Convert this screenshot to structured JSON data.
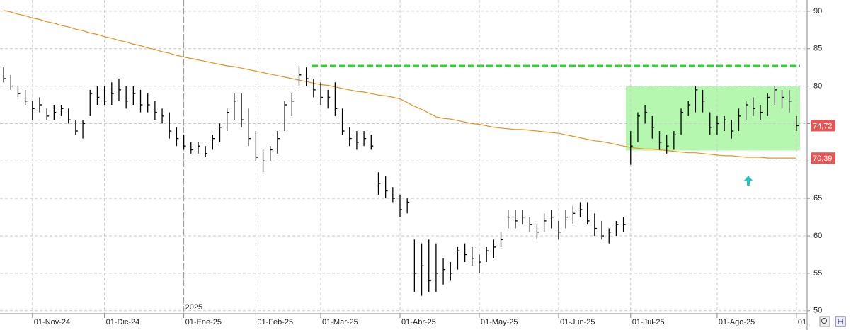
{
  "chart_data": {
    "type": "ohlc",
    "categories": [
      null,
      null,
      null,
      null,
      "01-Nov-24",
      null,
      null,
      null,
      null,
      null,
      null,
      null,
      null,
      null,
      "01-Dic-24",
      null,
      null,
      null,
      null,
      null,
      null,
      null,
      null,
      null,
      null,
      "01-Ene-25",
      null,
      null,
      null,
      null,
      null,
      null,
      null,
      null,
      null,
      "01-Feb-25",
      null,
      null,
      null,
      null,
      null,
      null,
      null,
      null,
      "01-Mar-25",
      null,
      null,
      null,
      null,
      null,
      null,
      null,
      null,
      null,
      null,
      "01-Abr-25",
      null,
      null,
      null,
      null,
      null,
      null,
      null,
      null,
      null,
      null,
      "01-May-25",
      null,
      null,
      null,
      null,
      null,
      null,
      null,
      null,
      null,
      null,
      "01-Jun-25",
      null,
      null,
      null,
      null,
      null,
      null,
      null,
      null,
      null,
      "01-Jul-25",
      null,
      null,
      null,
      null,
      null,
      null,
      null,
      null,
      null,
      null,
      null,
      "01-Ago-25",
      null,
      null,
      null,
      null,
      null,
      null,
      null,
      null,
      null,
      null,
      "01"
    ],
    "high": [
      82.5,
      81.5,
      80,
      79.5,
      78,
      78.5,
      77,
      77.5,
      77.5,
      77,
      75.5,
      75.5,
      79.5,
      80,
      80,
      80.5,
      81,
      80,
      80,
      79.5,
      79,
      78,
      77,
      76.5,
      74.5,
      73.5,
      72.5,
      72.5,
      72,
      73.5,
      75,
      77,
      79,
      79,
      77,
      74,
      71.5,
      72,
      74,
      78,
      79,
      82.5,
      82.5,
      81,
      80.5,
      79.5,
      80.5,
      77,
      74.5,
      74,
      74,
      73.5,
      68.5,
      68,
      66.5,
      65.5,
      65,
      59.5,
      59,
      59.5,
      59,
      57,
      56.5,
      58.5,
      59,
      58.5,
      57.5,
      58.5,
      59.5,
      60.5,
      63.5,
      63.5,
      63.5,
      62.5,
      61.5,
      63,
      63.5,
      62,
      63.5,
      64,
      64.5,
      64.5,
      63,
      62,
      61,
      62,
      62.5,
      74,
      76.5,
      77.5,
      76,
      74,
      73.5,
      74,
      77,
      78,
      80,
      79.5,
      76.5,
      76,
      76,
      75.5,
      77,
      78,
      78.5,
      77.5,
      79,
      80,
      79.5,
      79.5,
      76
    ],
    "low": [
      80.5,
      79.5,
      78.5,
      77.5,
      75.5,
      76.5,
      75.5,
      75.5,
      76,
      75,
      73.5,
      73,
      76,
      77.5,
      77.5,
      77.5,
      78,
      77,
      77.5,
      76.5,
      76.5,
      75.5,
      75,
      73,
      72,
      71.5,
      71,
      71,
      70.5,
      71.5,
      72.5,
      74,
      75.5,
      74.5,
      72,
      70,
      68.5,
      70,
      71,
      74,
      76,
      80,
      80,
      78.5,
      77.5,
      77,
      76,
      73.5,
      72,
      71.5,
      72,
      71.5,
      65.5,
      65,
      64.5,
      62.5,
      63,
      52.5,
      52,
      52.5,
      52.5,
      53.5,
      54,
      55.5,
      56.5,
      56,
      55,
      56.5,
      57,
      58.5,
      61,
      61,
      61.5,
      60.5,
      59.5,
      60.5,
      61,
      59.5,
      61,
      61.5,
      62.5,
      61.5,
      60,
      59.5,
      59,
      60,
      60.5,
      69.5,
      72.5,
      75,
      73,
      71.5,
      71,
      71.5,
      73.5,
      76,
      76.5,
      76.5,
      73.5,
      73.5,
      74,
      73,
      74,
      75.5,
      76,
      75.5,
      76,
      77.5,
      77,
      76.5,
      74
    ],
    "close": [
      81,
      80,
      79,
      78,
      77,
      77.5,
      76,
      76.5,
      77,
      75.5,
      74,
      75,
      79,
      78.5,
      78,
      79,
      79.5,
      78,
      79,
      77.5,
      77.5,
      76.5,
      76,
      74,
      73,
      72,
      71.5,
      72,
      71,
      73,
      74.5,
      76.5,
      78,
      75.5,
      73,
      70.5,
      70,
      71.5,
      73,
      77.5,
      78,
      81.5,
      81,
      79.5,
      78.5,
      78.5,
      77,
      74,
      73,
      72.5,
      73,
      72,
      67,
      66,
      65,
      63.5,
      64.5,
      55,
      56,
      54,
      55,
      55.5,
      55,
      58,
      57.5,
      57,
      56.5,
      58,
      58.5,
      59.5,
      62.5,
      62,
      62.5,
      61.5,
      60.5,
      62,
      62.5,
      60.5,
      62.5,
      63,
      63.5,
      62,
      61,
      60,
      60.5,
      61.5,
      61.5,
      72,
      76,
      76.5,
      74.5,
      72.5,
      72,
      73.5,
      76.5,
      77.5,
      79.5,
      78,
      74.5,
      75,
      75.5,
      74,
      76,
      77.5,
      77,
      76.5,
      78.5,
      79.5,
      78.5,
      78,
      74.72
    ],
    "bar_color": "#000000",
    "ma": {
      "color": "#e8921e",
      "values": [
        90.1,
        89.9,
        89.6,
        89.4,
        89.1,
        88.9,
        88.6,
        88.4,
        88.1,
        87.9,
        87.6,
        87.4,
        87.1,
        86.9,
        86.6,
        86.4,
        86.1,
        85.9,
        85.6,
        85.4,
        85.1,
        84.9,
        84.6,
        84.4,
        84.1,
        83.9,
        83.7,
        83.5,
        83.3,
        83.1,
        82.9,
        82.7,
        82.6,
        82.4,
        82.2,
        82.0,
        81.8,
        81.6,
        81.4,
        81.2,
        81.0,
        80.8,
        80.6,
        80.4,
        80.2,
        80.1,
        79.9,
        79.7,
        79.5,
        79.3,
        79.2,
        79.0,
        78.8,
        78.7,
        78.5,
        78.3,
        77.8,
        77.3,
        76.9,
        76.4,
        75.9,
        75.7,
        75.6,
        75.4,
        75.2,
        75.0,
        74.9,
        74.7,
        74.5,
        74.4,
        74.3,
        74.2,
        74.2,
        74.1,
        74.0,
        73.9,
        73.8,
        73.7,
        73.5,
        73.3,
        73.1,
        72.9,
        72.7,
        72.6,
        72.4,
        72.2,
        72.0,
        71.8,
        71.7,
        71.6,
        71.6,
        71.5,
        71.4,
        71.3,
        71.2,
        71.1,
        71.1,
        71.0,
        70.9,
        70.8,
        70.7,
        70.7,
        70.6,
        70.5,
        70.5,
        70.5,
        70.4,
        70.4,
        70.4,
        70.4,
        70.39
      ]
    },
    "resistance": {
      "value": 82.7,
      "color": "#22dd22"
    },
    "zone": {
      "low": 71.4,
      "high": 80,
      "color": "#b6f7b0"
    },
    "price_labels": [
      {
        "value": 74.72,
        "label": "74,72"
      },
      {
        "value": 70.39,
        "label": "70,39"
      }
    ],
    "year_label": "2025",
    "ylim": [
      49.6,
      91.5
    ],
    "yticks": [
      50,
      55,
      60,
      65,
      70,
      75,
      80,
      85,
      90
    ],
    "grid": true
  }
}
